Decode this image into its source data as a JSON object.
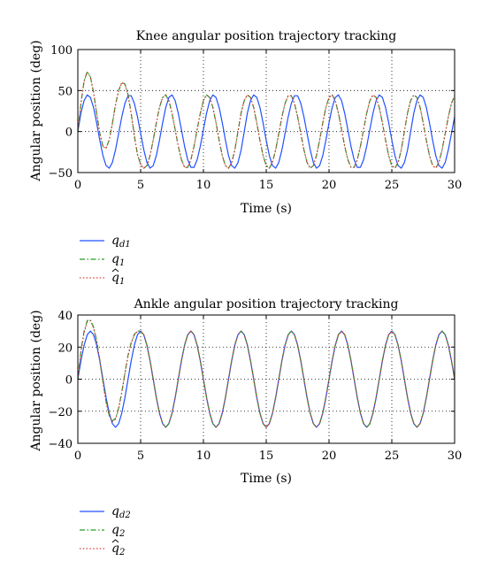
{
  "chart_data": [
    {
      "type": "line",
      "title": "Knee angular position trajectory tracking",
      "xlabel": "Time (s)",
      "ylabel": "Angular position (deg)",
      "xlim": [
        0,
        30
      ],
      "ylim": [
        -50,
        100
      ],
      "xticks": [
        0,
        5,
        10,
        15,
        20,
        25,
        30
      ],
      "yticks": [
        -50,
        0,
        50,
        100
      ],
      "xtick_labels": [
        "0",
        "5",
        "10",
        "15",
        "20",
        "25",
        "30"
      ],
      "ytick_labels": [
        "−50",
        "0",
        "50",
        "100"
      ],
      "grid": true,
      "grid_style": "dotted",
      "legend_position": "below",
      "x": [
        0,
        0.25,
        0.5,
        0.75,
        1.0,
        1.25,
        1.5,
        1.75,
        2.0,
        2.25,
        2.5,
        2.75,
        3.0,
        3.25,
        3.5,
        3.75,
        4.0,
        4.25,
        4.5,
        4.75,
        5.0,
        5.25,
        5.5,
        5.75,
        6.0,
        6.25,
        6.5,
        6.75,
        7.0,
        7.25,
        7.5,
        7.75,
        8.0,
        8.25,
        8.5,
        8.75,
        9.0,
        9.25,
        9.5,
        9.75,
        10.0,
        10.25,
        10.5,
        10.75,
        11.0,
        11.25,
        11.5,
        11.75,
        12.0,
        12.25,
        12.5,
        12.75,
        13.0,
        13.25,
        13.5,
        13.75,
        14.0,
        14.25,
        14.5,
        14.75,
        15.0,
        15.25,
        15.5,
        15.75,
        16.0,
        16.25,
        16.5,
        16.75,
        17.0,
        17.25,
        17.5,
        17.75,
        18.0,
        18.25,
        18.5,
        18.75,
        19.0,
        19.25,
        19.5,
        19.75,
        20.0,
        20.25,
        20.5,
        20.75,
        21.0,
        21.25,
        21.5,
        21.75,
        22.0,
        22.25,
        22.5,
        22.75,
        23.0,
        23.25,
        23.5,
        23.75,
        24.0,
        24.25,
        24.5,
        24.75,
        25.0,
        25.25,
        25.5,
        25.75,
        26.0,
        26.25,
        26.5,
        26.75,
        27.0,
        27.25,
        27.5,
        27.75,
        28.0,
        28.25,
        28.5,
        28.75,
        29.0,
        29.25,
        29.5,
        29.75,
        30.0
      ],
      "series": [
        {
          "name": "q_d1",
          "color": "#2050ff",
          "dash": "solid",
          "values": [
            0,
            22.6,
            37.9,
            44.7,
            41.6,
            29.4,
            10.4,
            -10.8,
            -29.4,
            -41.6,
            -44.7,
            -37.7,
            -22.3,
            -2.4,
            18.0,
            34.4,
            43.7,
            43.7,
            34.4,
            18.1,
            -2.2,
            -22.1,
            -37.7,
            -44.7,
            -41.6,
            -29.4,
            -10.6,
            10.6,
            29.4,
            41.6,
            44.7,
            37.7,
            22.1,
            2.2,
            -18.1,
            -34.4,
            -43.7,
            -43.7,
            -34.4,
            -18.0,
            2.4,
            22.3,
            37.7,
            44.7,
            41.6,
            29.4,
            10.8,
            -10.4,
            -29.4,
            -41.6,
            -44.7,
            -37.9,
            -22.6,
            0,
            22.6,
            37.9,
            44.7,
            41.6,
            29.4,
            10.4,
            -10.8,
            -29.4,
            -41.6,
            -44.7,
            -37.7,
            -22.3,
            -2.4,
            18.0,
            34.4,
            43.7,
            43.7,
            34.4,
            18.1,
            -2.2,
            -22.1,
            -37.7,
            -44.7,
            -41.6,
            -29.4,
            -10.6,
            10.6,
            29.4,
            41.6,
            44.7,
            37.7,
            22.1,
            2.2,
            -18.1,
            -34.4,
            -43.7,
            -43.7,
            -34.4,
            -18.0,
            2.4,
            22.3,
            37.7,
            44.7,
            41.6,
            29.4,
            10.8,
            -10.4,
            -29.4,
            -41.6,
            -44.7,
            -37.9,
            -22.6,
            0,
            22.6,
            37.9,
            44.7,
            41.6,
            29.4,
            10.4,
            -10.8,
            -29.4,
            -41.6,
            -44.7,
            -37.7,
            -22.3,
            -2.4,
            18.0
          ]
        },
        {
          "name": "q_1",
          "color": "#2a9a2a",
          "dash": "dashdot",
          "values": [
            0,
            35.0,
            62.0,
            73.0,
            67.0,
            48.0,
            22.0,
            -2.0,
            -18.0,
            -20.0,
            -10.0,
            10.0,
            33.0,
            50.0,
            60.0,
            58.0,
            45.0,
            22.0,
            -5.0,
            -28.0,
            -40.0,
            -44.8,
            -41.6,
            -29.4,
            -10.6,
            10.6,
            29.4,
            41.6,
            44.7,
            37.7,
            22.1,
            2.2,
            -18.1,
            -34.4,
            -43.7,
            -43.7,
            -34.4,
            -18.0,
            2.4,
            22.3,
            37.7,
            44.7,
            41.6,
            29.4,
            10.8,
            -10.4,
            -29.4,
            -41.6,
            -44.7,
            -37.9,
            -22.6,
            0,
            22.6,
            37.9,
            44.7,
            41.6,
            29.4,
            10.4,
            -10.8,
            -29.4,
            -41.6,
            -44.7,
            -37.7,
            -22.3,
            -2.4,
            18.0,
            34.4,
            43.7,
            43.7,
            34.4,
            18.1,
            -2.2,
            -22.1,
            -37.7,
            -44.7,
            -41.6,
            -29.4,
            -10.6,
            10.6,
            29.4,
            41.6,
            44.7,
            37.7,
            22.1,
            2.2,
            -18.1,
            -34.4,
            -43.7,
            -43.7,
            -34.4,
            -18.0,
            2.4,
            22.3,
            37.7,
            44.7,
            41.6,
            29.4,
            10.8,
            -10.4,
            -29.4,
            -41.6,
            -44.7,
            -37.9,
            -22.6,
            0,
            22.6,
            37.9,
            44.7,
            41.6,
            29.4,
            10.4,
            -10.8,
            -29.4,
            -41.6,
            -44.7,
            -37.7,
            -22.3,
            -2.4,
            18.0,
            34.4,
            43.7
          ]
        },
        {
          "name": "q̂_1",
          "color": "#e03030",
          "dash": "dotted",
          "values": [
            0,
            34.0,
            61.0,
            72.5,
            66.5,
            47.5,
            21.5,
            -2.5,
            -18.5,
            -20.5,
            -10.5,
            9.5,
            32.5,
            49.5,
            59.5,
            57.5,
            44.5,
            21.5,
            -5.5,
            -28.5,
            -40.5,
            -44.8,
            -41.6,
            -29.4,
            -10.6,
            10.6,
            29.4,
            41.6,
            44.7,
            37.7,
            22.1,
            2.2,
            -18.1,
            -34.4,
            -43.7,
            -43.7,
            -34.4,
            -18.0,
            2.4,
            22.3,
            37.7,
            44.7,
            41.6,
            29.4,
            10.8,
            -10.4,
            -29.4,
            -41.6,
            -44.7,
            -37.9,
            -22.6,
            0,
            22.6,
            37.9,
            44.7,
            41.6,
            29.4,
            10.4,
            -10.8,
            -29.4,
            -41.6,
            -44.7,
            -37.7,
            -22.3,
            -2.4,
            18.0,
            34.4,
            43.7,
            43.7,
            34.4,
            18.1,
            -2.2,
            -22.1,
            -37.7,
            -44.7,
            -41.6,
            -29.4,
            -10.6,
            10.6,
            29.4,
            41.6,
            44.7,
            37.7,
            22.1,
            2.2,
            -18.1,
            -34.4,
            -43.7,
            -43.7,
            -34.4,
            -18.0,
            2.4,
            22.3,
            37.7,
            44.7,
            41.6,
            29.4,
            10.8,
            -10.4,
            -29.4,
            -41.6,
            -44.7,
            -37.9,
            -22.6,
            0,
            22.6,
            37.9,
            44.7,
            41.6,
            29.4,
            10.4,
            -10.8,
            -29.4,
            -41.6,
            -44.7,
            -37.7,
            -22.3,
            -2.4,
            18.0,
            34.4,
            43.7
          ]
        }
      ],
      "legend": [
        {
          "base": "q",
          "sub": "d1",
          "hat": false
        },
        {
          "base": "q",
          "sub": "1",
          "hat": false
        },
        {
          "base": "q",
          "sub": "1",
          "hat": true
        }
      ]
    },
    {
      "type": "line",
      "title": "Ankle angular position trajectory tracking",
      "xlabel": "Time (s)",
      "ylabel": "Angular position (deg)",
      "xlim": [
        0,
        30
      ],
      "ylim": [
        -40,
        40
      ],
      "xticks": [
        0,
        5,
        10,
        15,
        20,
        25,
        30
      ],
      "yticks": [
        -40,
        -20,
        0,
        20,
        40
      ],
      "xtick_labels": [
        "0",
        "5",
        "10",
        "15",
        "20",
        "25",
        "30"
      ],
      "ytick_labels": [
        "−40",
        "−20",
        "0",
        "20",
        "40"
      ],
      "grid": true,
      "grid_style": "dotted",
      "legend_position": "below",
      "x": [
        0,
        0.25,
        0.5,
        0.75,
        1.0,
        1.25,
        1.5,
        1.75,
        2.0,
        2.25,
        2.5,
        2.75,
        3.0,
        3.25,
        3.5,
        3.75,
        4.0,
        4.25,
        4.5,
        4.75,
        5.0,
        5.25,
        5.5,
        5.75,
        6.0,
        6.25,
        6.5,
        6.75,
        7.0,
        7.25,
        7.5,
        7.75,
        8.0,
        8.25,
        8.5,
        8.75,
        9.0,
        9.25,
        9.5,
        9.75,
        10.0,
        10.25,
        10.5,
        10.75,
        11.0,
        11.25,
        11.5,
        11.75,
        12.0,
        12.25,
        12.5,
        12.75,
        13.0,
        13.25,
        13.5,
        13.75,
        14.0,
        14.25,
        14.5,
        14.75,
        15.0,
        15.25,
        15.5,
        15.75,
        16.0,
        16.25,
        16.5,
        16.75,
        17.0,
        17.25,
        17.5,
        17.75,
        18.0,
        18.25,
        18.5,
        18.75,
        19.0,
        19.25,
        19.5,
        19.75,
        20.0,
        20.25,
        20.5,
        20.75,
        21.0,
        21.25,
        21.5,
        21.75,
        22.0,
        22.25,
        22.5,
        22.75,
        23.0,
        23.25,
        23.5,
        23.75,
        24.0,
        24.25,
        24.5,
        24.75,
        25.0,
        25.25,
        25.5,
        25.75,
        26.0,
        26.25,
        26.5,
        26.75,
        27.0,
        27.25,
        27.5,
        27.75,
        28.0,
        28.25,
        28.5,
        28.75,
        29.0,
        29.25,
        29.5,
        29.75,
        30.0
      ],
      "series": [
        {
          "name": "q_d2",
          "color": "#2050ff",
          "dash": "solid",
          "values": [
            0,
            11.5,
            21.2,
            27.7,
            30.0,
            27.7,
            21.2,
            11.5,
            0,
            -11.5,
            -21.2,
            -27.7,
            -30.0,
            -27.7,
            -21.2,
            -11.5,
            0,
            11.5,
            21.2,
            27.7,
            30.0,
            27.7,
            21.2,
            11.5,
            0,
            -11.5,
            -21.2,
            -27.7,
            -30.0,
            -27.7,
            -21.2,
            -11.5,
            0,
            11.5,
            21.2,
            27.7,
            30.0,
            27.7,
            21.2,
            11.5,
            0,
            -11.5,
            -21.2,
            -27.7,
            -30.0,
            -27.7,
            -21.2,
            -11.5,
            0,
            11.5,
            21.2,
            27.7,
            30.0,
            27.7,
            21.2,
            11.5,
            0,
            -11.5,
            -21.2,
            -27.7,
            -30.0,
            -27.7,
            -21.2,
            -11.5,
            0,
            11.5,
            21.2,
            27.7,
            30.0,
            27.7,
            21.2,
            11.5,
            0,
            -11.5,
            -21.2,
            -27.7,
            -30.0,
            -27.7,
            -21.2,
            -11.5,
            0,
            11.5,
            21.2,
            27.7,
            30.0,
            27.7,
            21.2,
            11.5,
            0,
            -11.5,
            -21.2,
            -27.7,
            -30.0,
            -27.7,
            -21.2,
            -11.5,
            0,
            11.5,
            21.2,
            27.7,
            30.0,
            27.7,
            21.2,
            11.5,
            0,
            -11.5,
            -21.2,
            -27.7,
            -30.0,
            -27.7,
            -21.2,
            -11.5,
            0,
            11.5,
            21.2,
            27.7,
            30.0,
            27.7,
            21.2,
            11.5,
            0
          ]
        },
        {
          "name": "q_2",
          "color": "#2a9a2a",
          "dash": "dashdot",
          "values": [
            0,
            18.0,
            30.0,
            36.5,
            37.0,
            32.5,
            24.0,
            12.0,
            -1.5,
            -14.0,
            -22.5,
            -26.0,
            -24.5,
            -18.0,
            -8.0,
            4.0,
            15.0,
            23.0,
            28.0,
            30.0,
            30.0,
            27.7,
            21.2,
            11.5,
            0,
            -11.5,
            -21.2,
            -27.7,
            -30.0,
            -27.7,
            -21.2,
            -11.5,
            0,
            11.5,
            21.2,
            27.7,
            30.0,
            27.7,
            21.2,
            11.5,
            0,
            -11.5,
            -21.2,
            -27.7,
            -30.0,
            -27.7,
            -21.2,
            -11.5,
            0,
            11.5,
            21.2,
            27.7,
            30.0,
            27.7,
            21.2,
            11.5,
            0,
            -11.5,
            -21.2,
            -27.7,
            -30.0,
            -27.7,
            -21.2,
            -11.5,
            0,
            11.5,
            21.2,
            27.7,
            30.0,
            27.7,
            21.2,
            11.5,
            0,
            -11.5,
            -21.2,
            -27.7,
            -30.0,
            -27.7,
            -21.2,
            -11.5,
            0,
            11.5,
            21.2,
            27.7,
            30.0,
            27.7,
            21.2,
            11.5,
            0,
            -11.5,
            -21.2,
            -27.7,
            -30.0,
            -27.7,
            -21.2,
            -11.5,
            0,
            11.5,
            21.2,
            27.7,
            30.0,
            27.7,
            21.2,
            11.5,
            0,
            -11.5,
            -21.2,
            -27.7,
            -30.0,
            -27.7,
            -21.2,
            -11.5,
            0,
            11.5,
            21.2,
            27.7,
            30.0,
            27.7,
            21.2,
            11.5,
            0
          ]
        },
        {
          "name": "q̂_2",
          "color": "#e03030",
          "dash": "dotted",
          "values": [
            0,
            17.0,
            29.0,
            35.5,
            36.5,
            32.0,
            23.5,
            11.5,
            -2.0,
            -14.5,
            -23.0,
            -26.5,
            -25.0,
            -18.5,
            -8.5,
            3.5,
            14.5,
            22.5,
            27.5,
            29.8,
            30.0,
            27.7,
            21.2,
            11.5,
            0,
            -11.5,
            -21.2,
            -27.7,
            -30.0,
            -27.7,
            -21.2,
            -11.5,
            0,
            11.5,
            21.2,
            27.7,
            30.0,
            27.7,
            21.2,
            11.5,
            0,
            -11.5,
            -21.2,
            -27.7,
            -30.0,
            -27.7,
            -21.2,
            -11.5,
            0,
            11.5,
            21.2,
            27.7,
            30.0,
            27.7,
            21.2,
            11.5,
            0,
            -11.5,
            -21.2,
            -27.7,
            -30.0,
            -27.7,
            -21.2,
            -11.5,
            0,
            11.5,
            21.2,
            27.7,
            30.0,
            27.7,
            21.2,
            11.5,
            0,
            -11.5,
            -21.2,
            -27.7,
            -30.0,
            -27.7,
            -21.2,
            -11.5,
            0,
            11.5,
            21.2,
            27.7,
            30.0,
            27.7,
            21.2,
            11.5,
            0,
            -11.5,
            -21.2,
            -27.7,
            -30.0,
            -27.7,
            -21.2,
            -11.5,
            0,
            11.5,
            21.2,
            27.7,
            30.0,
            27.7,
            21.2,
            11.5,
            0,
            -11.5,
            -21.2,
            -27.7,
            -30.0,
            -27.7,
            -21.2,
            -11.5,
            0,
            11.5,
            21.2,
            27.7,
            30.0,
            27.7,
            21.2,
            11.5,
            0
          ]
        }
      ],
      "legend": [
        {
          "base": "q",
          "sub": "d2",
          "hat": false
        },
        {
          "base": "q",
          "sub": "2",
          "hat": false
        },
        {
          "base": "q",
          "sub": "2",
          "hat": true
        }
      ]
    }
  ]
}
